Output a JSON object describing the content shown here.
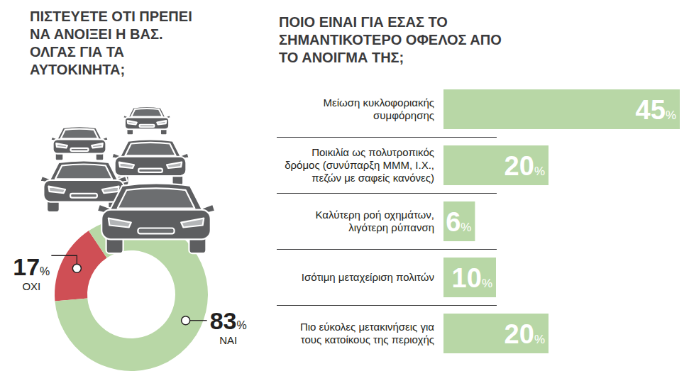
{
  "chart_data": [
    {
      "type": "donut",
      "title": "ΠΙΣΤΕΥΕΤΕ ΟΤΙ ΠΡΕΠΕΙ ΝΑ ΑΝΟΙΞΕΙ Η ΒΑΣ. ΟΛΓΑΣ ΓΙΑ ΤΑ ΑΥΤΟΚΙΝΗΤΑ;",
      "categories": [
        "ΟΧΙ",
        "ΝΑΙ"
      ],
      "values": [
        17,
        83
      ],
      "value_labels": [
        "17%",
        "83%"
      ],
      "colors": [
        "#cf4f55",
        "#b8d7a6"
      ],
      "data_labels": true
    },
    {
      "type": "bar",
      "orientation": "horizontal",
      "title": "ΠΟΙΟ ΕΙΝΑΙ ΓΙΑ ΕΣΑΣ ΤΟ ΣΗΜΑΝΤΙΚΟΤΕΡΟ ΟΦΕΛΟΣ ΑΠΟ ΤΟ ΑΝΟΙΓΜΑ ΤΗΣ;",
      "categories": [
        "Μείωση κυκλοφοριακής συμφόρησης",
        "Ποικιλία ως πολυτροπικός δρόμος (συνύπαρξη ΜΜΜ, Ι.Χ., πεζών με σαφείς κανόνες)",
        "Καλύτερη ροή οχημάτων, λιγότερη ρύπανση",
        "Ισότιμη μεταχείριση πολιτών",
        "Πιο εύκολες μετακινήσεις για τους κατοίκους της περιοχής"
      ],
      "values": [
        45,
        20,
        6,
        10,
        20
      ],
      "value_labels": [
        "45%",
        "20%",
        "6%",
        "10%",
        "20%"
      ],
      "color": "#b8d7a6",
      "xlim": [
        0,
        45
      ],
      "data_labels": true,
      "tick_labels": false,
      "grid": false
    }
  ]
}
